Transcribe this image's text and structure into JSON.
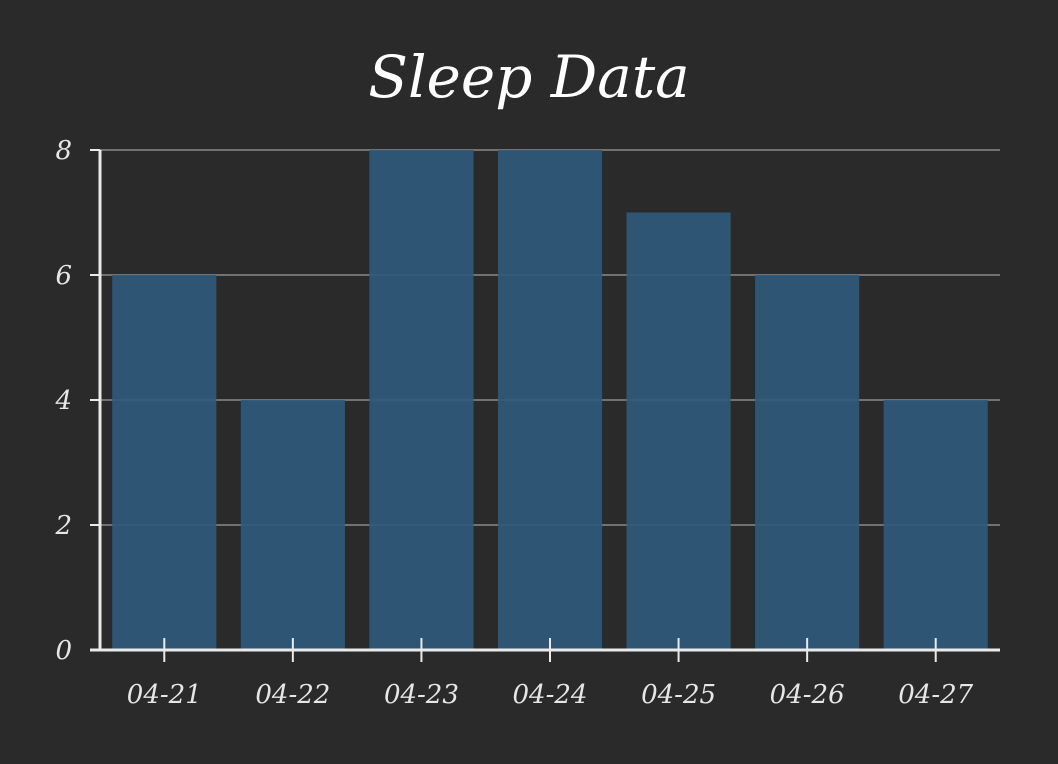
{
  "chart_data": {
    "type": "bar",
    "title": "Sleep Data",
    "xlabel": "",
    "ylabel": "",
    "categories": [
      "04-21",
      "04-22",
      "04-23",
      "04-24",
      "04-25",
      "04-26",
      "04-27"
    ],
    "values": [
      6,
      4,
      8,
      8,
      7,
      6,
      4
    ],
    "ylim": [
      0,
      8
    ],
    "yticks": [
      0,
      2,
      4,
      6,
      8
    ],
    "grid": true,
    "legend": "none",
    "colors": {
      "background": "#2a2a2a",
      "bar": "#2f5a7b",
      "grid": "#8a8a8a",
      "axis": "#eaeaea",
      "text": "#e6e6e6"
    }
  }
}
